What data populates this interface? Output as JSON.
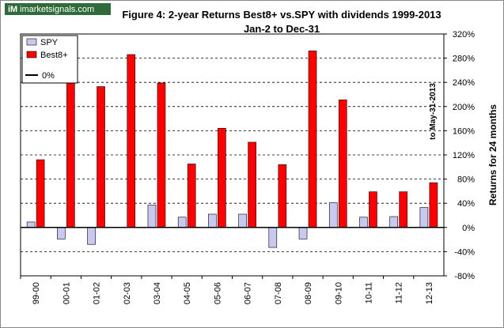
{
  "logo": {
    "text": "imarketsignals.com",
    "mark": "iM"
  },
  "chart_data": {
    "type": "bar",
    "title": "Figure 4:  2-year Returns Best8+  vs.SPY with dividends  1999-2013",
    "subtitle": "Jan-2 to Dec-31",
    "ylabel": "Returns for 24 months",
    "xlabel": "",
    "annotation": "to May-31-2013",
    "categories": [
      "99-00",
      "00-01",
      "01-02",
      "02-03",
      "03-04",
      "04-05",
      "05-06",
      "06-07",
      "07-08",
      "08-09",
      "09-10",
      "10-11",
      "11-12",
      "12-13"
    ],
    "series": [
      {
        "name": "SPY",
        "color": "#c8c8f0",
        "values": [
          9,
          -19,
          -28,
          0,
          37,
          17,
          22,
          22,
          -33,
          -19,
          41,
          17,
          18,
          33
        ]
      },
      {
        "name": "Best8+",
        "color": "#ff0000",
        "values": [
          112,
          250,
          233,
          286,
          239,
          105,
          164,
          141,
          104,
          292,
          211,
          59,
          59,
          74
        ]
      }
    ],
    "zero_line_label": "0%",
    "yticks": [
      "320%",
      "280%",
      "240%",
      "200%",
      "160%",
      "120%",
      "80%",
      "40%",
      "0%",
      "-40%",
      "-80%"
    ],
    "ylim": [
      -80,
      320
    ],
    "ytick_step": 40,
    "grid": "horizontal dashed",
    "legend": "top-left"
  }
}
